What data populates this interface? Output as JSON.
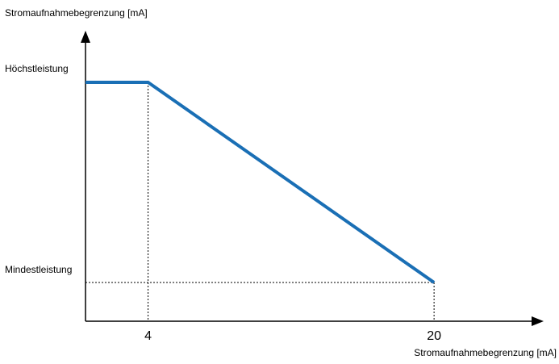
{
  "colors": {
    "background": "#ffffff",
    "axis": "#000000",
    "series_line": "#1a6fb5",
    "guide_line": "#000000"
  },
  "chart_data": {
    "type": "line",
    "title": "",
    "ylabel": "Stromaufnahmebegrenzung [mA]",
    "xlabel": "Stromaufnahmebegrenzung [mA]",
    "y_levels": {
      "max_label": "Höchstleistung",
      "min_label": "Mindestleistung"
    },
    "x_ticks": [
      {
        "value": 4,
        "label": "4"
      },
      {
        "value": 20,
        "label": "20"
      }
    ],
    "xlim": [
      0.5,
      25.5
    ],
    "ylim": [
      0,
      1.12
    ],
    "series": [
      {
        "points": [
          {
            "x": 0.5,
            "y": 1.0
          },
          {
            "x": 4,
            "y": 1.0
          },
          {
            "x": 20,
            "y": 0.0
          }
        ]
      }
    ],
    "guides": [
      {
        "type": "vertical",
        "x": 4,
        "from_y": 1.0
      },
      {
        "type": "vertical",
        "x": 20,
        "from_y": 0.0
      },
      {
        "type": "horizontal",
        "y": 0.0,
        "to_x": 20
      }
    ],
    "legend": "none",
    "grid": false
  }
}
